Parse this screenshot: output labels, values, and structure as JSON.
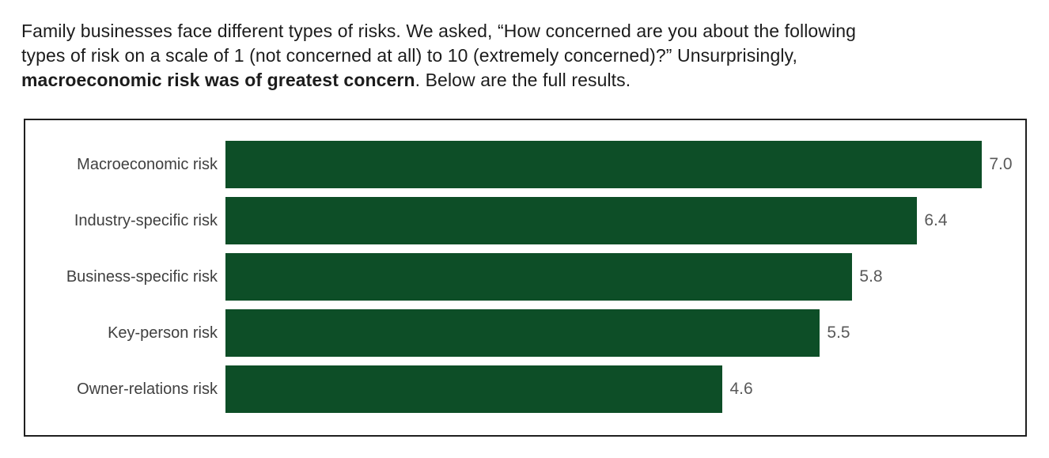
{
  "intro": {
    "line1": "Family businesses face different types of risks. We asked, “How concerned are you about the following",
    "line2": "types of risk on a scale of 1 (not concerned at all) to 10 (extremely concerned)?” Unsurprisingly,",
    "line3_bold": "macroeconomic risk was of greatest concern",
    "line3_rest": ". Below are the full results."
  },
  "chart_data": {
    "type": "bar",
    "orientation": "horizontal",
    "title": "",
    "xlabel": "",
    "ylabel": "",
    "categories": [
      "Macroeconomic risk",
      "Industry-specific risk",
      "Business-specific risk",
      "Key-person risk",
      "Owner-relations risk"
    ],
    "values": [
      7.0,
      6.4,
      5.8,
      5.5,
      4.6
    ],
    "value_labels": [
      "7.0",
      "6.4",
      "5.8",
      "5.5",
      "4.6"
    ],
    "xlim": [
      0,
      7.4
    ],
    "grid": false,
    "legend": "none",
    "data_labels": "outside-end",
    "scale_note": "1 = not concerned at all, 10 = extremely concerned",
    "colors": {
      "bar": "#0d4e27",
      "category_label": "#404040",
      "value_label": "#595959",
      "frame_border": "#1f1f1f",
      "intro_text": "#1c1c1c",
      "background": "#ffffff"
    }
  }
}
